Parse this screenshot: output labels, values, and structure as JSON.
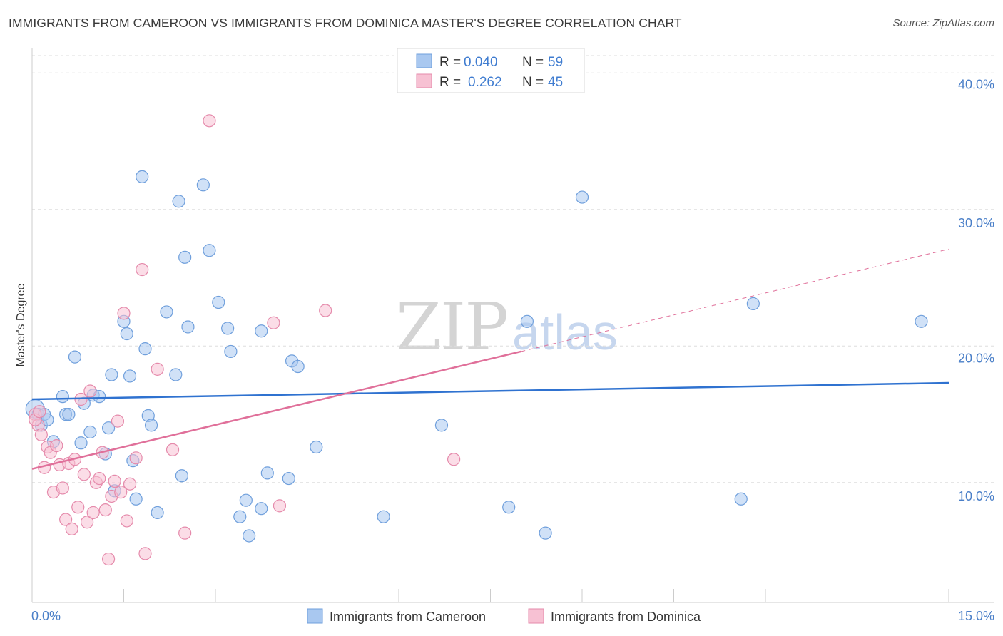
{
  "title": "IMMIGRANTS FROM CAMEROON VS IMMIGRANTS FROM DOMINICA MASTER'S DEGREE CORRELATION CHART",
  "source": "Source: ZipAtlas.com",
  "watermark": {
    "zip": "ZIP",
    "atlas": "atlas"
  },
  "legend": {
    "r_label": "R =",
    "n_label": "N =",
    "rows": [
      {
        "r": "0.040",
        "n": "59",
        "color": "#a9c8f0",
        "stroke": "#6f9fdc"
      },
      {
        "r": "0.262",
        "n": "45",
        "color": "#f7c1d3",
        "stroke": "#e58aab"
      }
    ]
  },
  "bottom_legend": [
    {
      "label": "Immigrants from Cameroon",
      "color": "#a9c8f0",
      "stroke": "#6f9fdc"
    },
    {
      "label": "Immigrants from Dominica",
      "color": "#f7c1d3",
      "stroke": "#e58aab"
    }
  ],
  "chart_data": {
    "type": "scatter",
    "title": "IMMIGRANTS FROM CAMEROON VS IMMIGRANTS FROM DOMINICA MASTER'S DEGREE CORRELATION CHART",
    "xlabel": "",
    "ylabel": "Master's Degree",
    "xlim": [
      0,
      15
    ],
    "ylim": [
      2,
      42
    ],
    "x_tick_labels": [
      "0.0%",
      "15.0%"
    ],
    "y_ticks": [
      10,
      20,
      30,
      40
    ],
    "y_tick_labels": [
      "10.0%",
      "20.0%",
      "30.0%",
      "40.0%"
    ],
    "grid": true,
    "legend_position": "top-center",
    "series": [
      {
        "name": "Immigrants from Cameroon",
        "color": "#a9c8f0",
        "line_color": "#2f72d0",
        "trend": {
          "x": [
            0,
            15
          ],
          "y": [
            16.1,
            17.3
          ],
          "dashed_from": null
        },
        "points": [
          [
            0.05,
            15.4
          ],
          [
            0.1,
            15.0
          ],
          [
            0.15,
            14.2
          ],
          [
            0.2,
            15.0
          ],
          [
            0.25,
            14.6
          ],
          [
            0.35,
            13.0
          ],
          [
            0.5,
            16.3
          ],
          [
            0.55,
            15.0
          ],
          [
            0.6,
            15.0
          ],
          [
            0.7,
            19.2
          ],
          [
            0.8,
            12.9
          ],
          [
            0.85,
            15.8
          ],
          [
            0.95,
            13.7
          ],
          [
            1.0,
            16.4
          ],
          [
            1.1,
            16.3
          ],
          [
            1.2,
            12.1
          ],
          [
            1.25,
            14.0
          ],
          [
            1.3,
            17.9
          ],
          [
            1.35,
            9.4
          ],
          [
            1.5,
            21.8
          ],
          [
            1.55,
            20.9
          ],
          [
            1.6,
            17.8
          ],
          [
            1.65,
            11.6
          ],
          [
            1.7,
            8.8
          ],
          [
            1.8,
            32.4
          ],
          [
            1.85,
            19.8
          ],
          [
            1.9,
            14.9
          ],
          [
            1.95,
            14.2
          ],
          [
            2.05,
            7.8
          ],
          [
            2.2,
            22.5
          ],
          [
            2.35,
            17.9
          ],
          [
            2.4,
            30.6
          ],
          [
            2.45,
            10.5
          ],
          [
            2.5,
            26.5
          ],
          [
            2.55,
            21.4
          ],
          [
            2.8,
            31.8
          ],
          [
            2.9,
            27.0
          ],
          [
            3.05,
            23.2
          ],
          [
            3.2,
            21.3
          ],
          [
            3.25,
            19.6
          ],
          [
            3.4,
            7.5
          ],
          [
            3.5,
            8.7
          ],
          [
            3.55,
            6.1
          ],
          [
            3.75,
            8.1
          ],
          [
            3.75,
            21.1
          ],
          [
            3.85,
            10.7
          ],
          [
            4.2,
            10.3
          ],
          [
            4.25,
            18.9
          ],
          [
            4.35,
            18.5
          ],
          [
            4.65,
            12.6
          ],
          [
            5.75,
            7.5
          ],
          [
            6.7,
            14.2
          ],
          [
            7.8,
            8.2
          ],
          [
            8.1,
            21.8
          ],
          [
            8.4,
            6.3
          ],
          [
            9.0,
            30.9
          ],
          [
            11.6,
            8.8
          ],
          [
            11.8,
            23.1
          ],
          [
            14.55,
            21.8
          ]
        ]
      },
      {
        "name": "Immigrants from Dominica",
        "color": "#f7c1d3",
        "line_color": "#e0709a",
        "trend": {
          "x": [
            0,
            8.0,
            15
          ],
          "y": [
            11.0,
            19.6,
            27.1
          ],
          "dashed_from": 8.0
        },
        "points": [
          [
            0.05,
            15.0
          ],
          [
            0.1,
            14.2
          ],
          [
            0.15,
            13.5
          ],
          [
            0.2,
            11.1
          ],
          [
            0.25,
            12.6
          ],
          [
            0.3,
            12.2
          ],
          [
            0.35,
            9.3
          ],
          [
            0.4,
            12.7
          ],
          [
            0.45,
            11.3
          ],
          [
            0.5,
            9.6
          ],
          [
            0.55,
            7.3
          ],
          [
            0.6,
            11.4
          ],
          [
            0.65,
            6.6
          ],
          [
            0.7,
            11.7
          ],
          [
            0.75,
            8.2
          ],
          [
            0.8,
            16.1
          ],
          [
            0.85,
            10.6
          ],
          [
            0.9,
            7.1
          ],
          [
            0.95,
            16.7
          ],
          [
            1.0,
            7.8
          ],
          [
            1.05,
            10.0
          ],
          [
            1.1,
            10.3
          ],
          [
            1.15,
            12.2
          ],
          [
            1.2,
            8.0
          ],
          [
            1.25,
            4.4
          ],
          [
            1.3,
            9.0
          ],
          [
            1.35,
            10.1
          ],
          [
            1.4,
            14.5
          ],
          [
            1.45,
            9.3
          ],
          [
            1.5,
            22.4
          ],
          [
            1.55,
            7.2
          ],
          [
            1.6,
            9.9
          ],
          [
            1.7,
            11.8
          ],
          [
            1.8,
            25.6
          ],
          [
            1.85,
            4.8
          ],
          [
            2.05,
            18.3
          ],
          [
            2.3,
            12.4
          ],
          [
            2.5,
            6.3
          ],
          [
            2.9,
            36.5
          ],
          [
            3.95,
            21.7
          ],
          [
            4.05,
            8.3
          ],
          [
            4.8,
            22.6
          ],
          [
            6.9,
            11.7
          ],
          [
            0.05,
            14.6
          ],
          [
            0.12,
            15.2
          ]
        ]
      }
    ]
  }
}
